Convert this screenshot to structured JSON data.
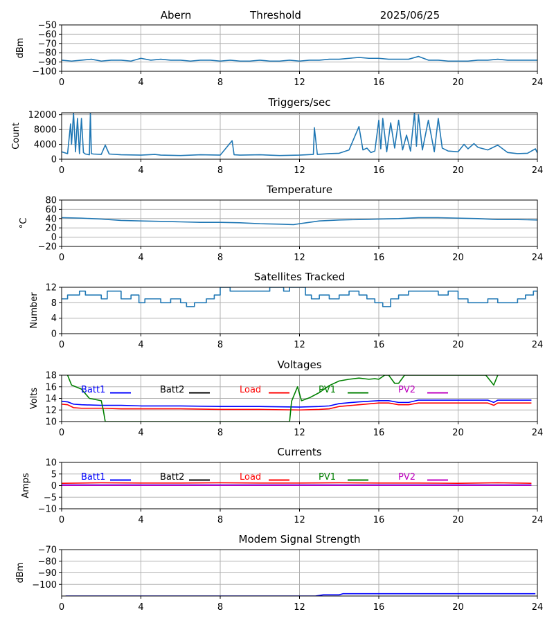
{
  "header": {
    "station": "Abern",
    "threshold_label": "Threshold",
    "date": "2025/06/25"
  },
  "chart_data": [
    {
      "id": "signal",
      "type": "line",
      "title": "",
      "ylabel": "dBm",
      "xlim": [
        0,
        24
      ],
      "ylim": [
        -100,
        -50
      ],
      "xticks": [
        0,
        4,
        8,
        12,
        16,
        20,
        24
      ],
      "yticks": [
        -100,
        -90,
        -80,
        -70,
        -60,
        -50
      ],
      "grid": true,
      "series": [
        {
          "color": "#1f77b4",
          "x": [
            0,
            0.5,
            1,
            1.5,
            2,
            2.5,
            3,
            3.5,
            4,
            4.5,
            5,
            5.5,
            6,
            6.5,
            7,
            7.5,
            8,
            8.5,
            9,
            9.5,
            10,
            10.5,
            11,
            11.5,
            12,
            12.5,
            13,
            13.5,
            14,
            14.5,
            15,
            15.5,
            16,
            16.5,
            17,
            17.5,
            18,
            18.5,
            19,
            19.5,
            20,
            20.5,
            21,
            21.5,
            22,
            22.5,
            23,
            23.5,
            24
          ],
          "y": [
            -88,
            -89,
            -88,
            -87,
            -89,
            -88,
            -88,
            -89,
            -86,
            -88,
            -87,
            -88,
            -88,
            -89,
            -88,
            -88,
            -89,
            -88,
            -89,
            -89,
            -88,
            -89,
            -89,
            -88,
            -89,
            -88,
            -88,
            -87,
            -87,
            -86,
            -85,
            -86,
            -86,
            -87,
            -87,
            -87,
            -84,
            -88,
            -88,
            -89,
            -89,
            -89,
            -88,
            -88,
            -87,
            -88,
            -88,
            -88,
            -88
          ]
        }
      ]
    },
    {
      "id": "triggers",
      "type": "line",
      "title": "Triggers/sec",
      "ylabel": "Count",
      "xlim": [
        0,
        24
      ],
      "ylim": [
        0,
        12500
      ],
      "xticks": [
        0,
        4,
        8,
        12,
        16,
        20,
        24
      ],
      "yticks": [
        0,
        4000,
        8000,
        12000
      ],
      "grid": true,
      "series": [
        {
          "color": "#1f77b4",
          "x": [
            0,
            0.3,
            0.45,
            0.5,
            0.6,
            0.7,
            0.8,
            0.9,
            1.0,
            1.1,
            1.2,
            1.4,
            1.45,
            1.5,
            1.6,
            2.0,
            2.2,
            2.4,
            3.0,
            4.0,
            4.7,
            5.0,
            6.0,
            7.0,
            8.0,
            8.6,
            8.7,
            9.0,
            10.0,
            11.0,
            12.0,
            12.7,
            12.75,
            12.9,
            13.5,
            14.0,
            14.5,
            15.0,
            15.2,
            15.4,
            15.6,
            15.8,
            16.0,
            16.1,
            16.2,
            16.4,
            16.6,
            16.8,
            17.0,
            17.2,
            17.4,
            17.6,
            17.8,
            17.9,
            18.0,
            18.2,
            18.5,
            18.8,
            19.0,
            19.2,
            19.5,
            20.0,
            20.3,
            20.5,
            20.8,
            21.0,
            21.5,
            22.0,
            22.5,
            23.0,
            23.5,
            23.9,
            24.0
          ],
          "y": [
            2000,
            1500,
            9500,
            4000,
            12500,
            2000,
            11000,
            1500,
            11000,
            1800,
            1400,
            1200,
            12500,
            1500,
            1400,
            1300,
            3800,
            1400,
            1200,
            1100,
            1300,
            1100,
            1000,
            1200,
            1100,
            5000,
            1200,
            1100,
            1200,
            1000,
            1100,
            1300,
            8500,
            1300,
            1500,
            1600,
            2500,
            8800,
            2500,
            3000,
            1800,
            2200,
            10500,
            2800,
            11000,
            2000,
            9800,
            3000,
            10500,
            2500,
            6500,
            2200,
            12500,
            3500,
            12000,
            2500,
            10500,
            2000,
            11000,
            3000,
            2200,
            2000,
            4000,
            2800,
            4200,
            3200,
            2500,
            3800,
            1800,
            1500,
            1600,
            2800,
            1700
          ]
        }
      ]
    },
    {
      "id": "temperature",
      "type": "line",
      "title": "Temperature",
      "ylabel": "°C",
      "xlim": [
        0,
        24
      ],
      "ylim": [
        -20,
        80
      ],
      "xticks": [
        0,
        4,
        8,
        12,
        16,
        20,
        24
      ],
      "yticks": [
        -20,
        0,
        20,
        40,
        60,
        80
      ],
      "grid": true,
      "series": [
        {
          "color": "#1f77b4",
          "x": [
            0,
            1,
            2,
            3,
            4,
            5,
            6,
            7,
            8,
            9,
            10,
            11,
            11.7,
            12,
            13,
            14,
            15,
            16,
            17,
            18,
            19,
            20,
            21,
            22,
            23,
            24
          ],
          "y": [
            42,
            41,
            39,
            36,
            35,
            34,
            33,
            32,
            32,
            31,
            29,
            28,
            27,
            29,
            35,
            37,
            38,
            39,
            40,
            42,
            42,
            41,
            40,
            38,
            38,
            37
          ]
        }
      ]
    },
    {
      "id": "satellites",
      "type": "line",
      "title": "Satellites Tracked",
      "ylabel": "Number",
      "xlim": [
        0,
        24
      ],
      "ylim": [
        0,
        12
      ],
      "xticks": [
        0,
        4,
        8,
        12,
        16,
        20,
        24
      ],
      "yticks": [
        0,
        4,
        8,
        12
      ],
      "grid": true,
      "step": true,
      "series": [
        {
          "color": "#1f77b4",
          "x": [
            0,
            0.3,
            0.9,
            1.2,
            2.0,
            2.3,
            3.0,
            3.5,
            3.9,
            4.2,
            5.0,
            5.5,
            6.0,
            6.3,
            6.7,
            7.3,
            7.7,
            8.0,
            8.5,
            10.0,
            10.5,
            11.2,
            11.5,
            12.3,
            12.6,
            13.0,
            13.5,
            14.0,
            14.5,
            15.0,
            15.4,
            15.8,
            16.2,
            16.6,
            17.0,
            17.5,
            18.5,
            19.0,
            19.5,
            20.0,
            20.5,
            21.5,
            22.0,
            23.0,
            23.4,
            23.8,
            24.0
          ],
          "y": [
            9,
            10,
            11,
            10,
            9,
            11,
            9,
            10,
            8,
            9,
            8,
            9,
            8,
            7,
            8,
            9,
            10,
            12,
            11,
            11,
            12,
            11,
            12,
            10,
            9,
            10,
            9,
            10,
            11,
            10,
            9,
            8,
            7,
            9,
            10,
            11,
            11,
            10,
            11,
            9,
            8,
            9,
            8,
            9,
            10,
            11,
            9
          ]
        }
      ]
    },
    {
      "id": "voltages",
      "type": "line",
      "title": "Voltages",
      "ylabel": "Volts",
      "xlim": [
        0,
        24
      ],
      "ylim": [
        10,
        18
      ],
      "xticks": [
        0,
        4,
        8,
        12,
        16,
        20,
        24
      ],
      "yticks": [
        10,
        12,
        14,
        16,
        18
      ],
      "grid": true,
      "legend": "inline-top",
      "series": [
        {
          "name": "Batt1",
          "color": "#0000ff",
          "x": [
            0,
            0.3,
            0.6,
            1,
            2,
            3,
            4,
            6,
            8,
            10,
            12,
            13,
            13.5,
            14,
            15,
            16,
            16.5,
            17,
            17.5,
            18,
            20,
            21.5,
            21.8,
            22,
            23,
            23.7
          ],
          "y": [
            13.5,
            13.4,
            13.0,
            12.9,
            12.8,
            12.8,
            12.7,
            12.7,
            12.6,
            12.6,
            12.5,
            12.6,
            12.7,
            13.1,
            13.4,
            13.6,
            13.6,
            13.3,
            13.3,
            13.7,
            13.7,
            13.7,
            13.3,
            13.7,
            13.7,
            13.7
          ]
        },
        {
          "name": "Batt2",
          "color": "#000000",
          "x": [],
          "y": []
        },
        {
          "name": "Load",
          "color": "#ff0000",
          "x": [
            0,
            0.3,
            0.6,
            1,
            2,
            3,
            4,
            6,
            8,
            10,
            12,
            13,
            13.5,
            14,
            15,
            16,
            16.5,
            17,
            17.5,
            18,
            20,
            21.5,
            21.8,
            22,
            23,
            23.7
          ],
          "y": [
            13.0,
            12.9,
            12.4,
            12.3,
            12.3,
            12.2,
            12.2,
            12.2,
            12.1,
            12.1,
            12.0,
            12.1,
            12.2,
            12.6,
            12.9,
            13.2,
            13.2,
            12.9,
            12.9,
            13.2,
            13.2,
            13.2,
            12.8,
            13.2,
            13.2,
            13.2
          ]
        },
        {
          "name": "PV1",
          "color": "#008000",
          "x": [
            0.3,
            0.5,
            1,
            1.4,
            2.0,
            2.1,
            2.2,
            11.5,
            11.6,
            11.9,
            12.1,
            12.5,
            13,
            13.5,
            14,
            14.5,
            15,
            15.5,
            15.8,
            16,
            16.3,
            16.5,
            16.8,
            17.0,
            17.3,
            21.4,
            21.8,
            22.0
          ],
          "y": [
            18,
            16.3,
            15.6,
            14.0,
            13.6,
            12.0,
            10.0,
            10.0,
            13.5,
            16.0,
            13.6,
            14.1,
            15.0,
            16.2,
            17.0,
            17.3,
            17.5,
            17.3,
            17.4,
            17.3,
            18.0,
            18.0,
            16.6,
            16.6,
            18.0,
            18.0,
            16.3,
            18.0
          ]
        },
        {
          "name": "PV2",
          "color": "#bf00bf",
          "x": [],
          "y": []
        }
      ]
    },
    {
      "id": "currents",
      "type": "line",
      "title": "Currents",
      "ylabel": "Amps",
      "xlim": [
        0,
        24
      ],
      "ylim": [
        -10,
        10
      ],
      "xticks": [
        0,
        4,
        8,
        12,
        16,
        20,
        24
      ],
      "yticks": [
        -10,
        -5,
        0,
        5,
        10
      ],
      "grid": true,
      "legend": "inline-top",
      "series": [
        {
          "name": "Batt1",
          "color": "#0000ff",
          "x": [
            0,
            4,
            8,
            12,
            16,
            20,
            23.7
          ],
          "y": [
            0.3,
            0.3,
            0.3,
            0.3,
            0.3,
            0.3,
            0.3
          ]
        },
        {
          "name": "Batt2",
          "color": "#000000",
          "x": [],
          "y": []
        },
        {
          "name": "Load",
          "color": "#ff0000",
          "x": [
            0,
            2,
            4,
            6,
            8,
            10,
            12,
            14,
            16,
            18,
            20,
            22,
            23.7
          ],
          "y": [
            1.0,
            1.2,
            1.1,
            1.1,
            1.2,
            1.1,
            1.1,
            1.2,
            1.1,
            1.1,
            1.0,
            1.2,
            1.0
          ]
        },
        {
          "name": "PV1",
          "color": "#008000",
          "x": [],
          "y": []
        },
        {
          "name": "PV2",
          "color": "#bf00bf",
          "x": [
            0,
            4,
            8,
            12,
            16,
            20,
            23.7
          ],
          "y": [
            0.1,
            0.1,
            0.1,
            0.1,
            0.1,
            0.1,
            0.1
          ]
        }
      ]
    },
    {
      "id": "modem",
      "type": "line",
      "title": "Modem Signal Strength",
      "ylabel": "dBm",
      "xlim": [
        0,
        24
      ],
      "ylim": [
        -110,
        -70
      ],
      "xticks": [
        0,
        4,
        8,
        12,
        16,
        20,
        24
      ],
      "yticks": [
        -100,
        -90,
        -80,
        -70
      ],
      "grid": true,
      "series": [
        {
          "color": "#0000ff",
          "x": [
            0.2,
            12.8,
            13.2,
            14.0,
            14.2,
            23.9
          ],
          "y": [
            -110,
            -110,
            -109,
            -109,
            -108,
            -108
          ]
        }
      ]
    }
  ]
}
